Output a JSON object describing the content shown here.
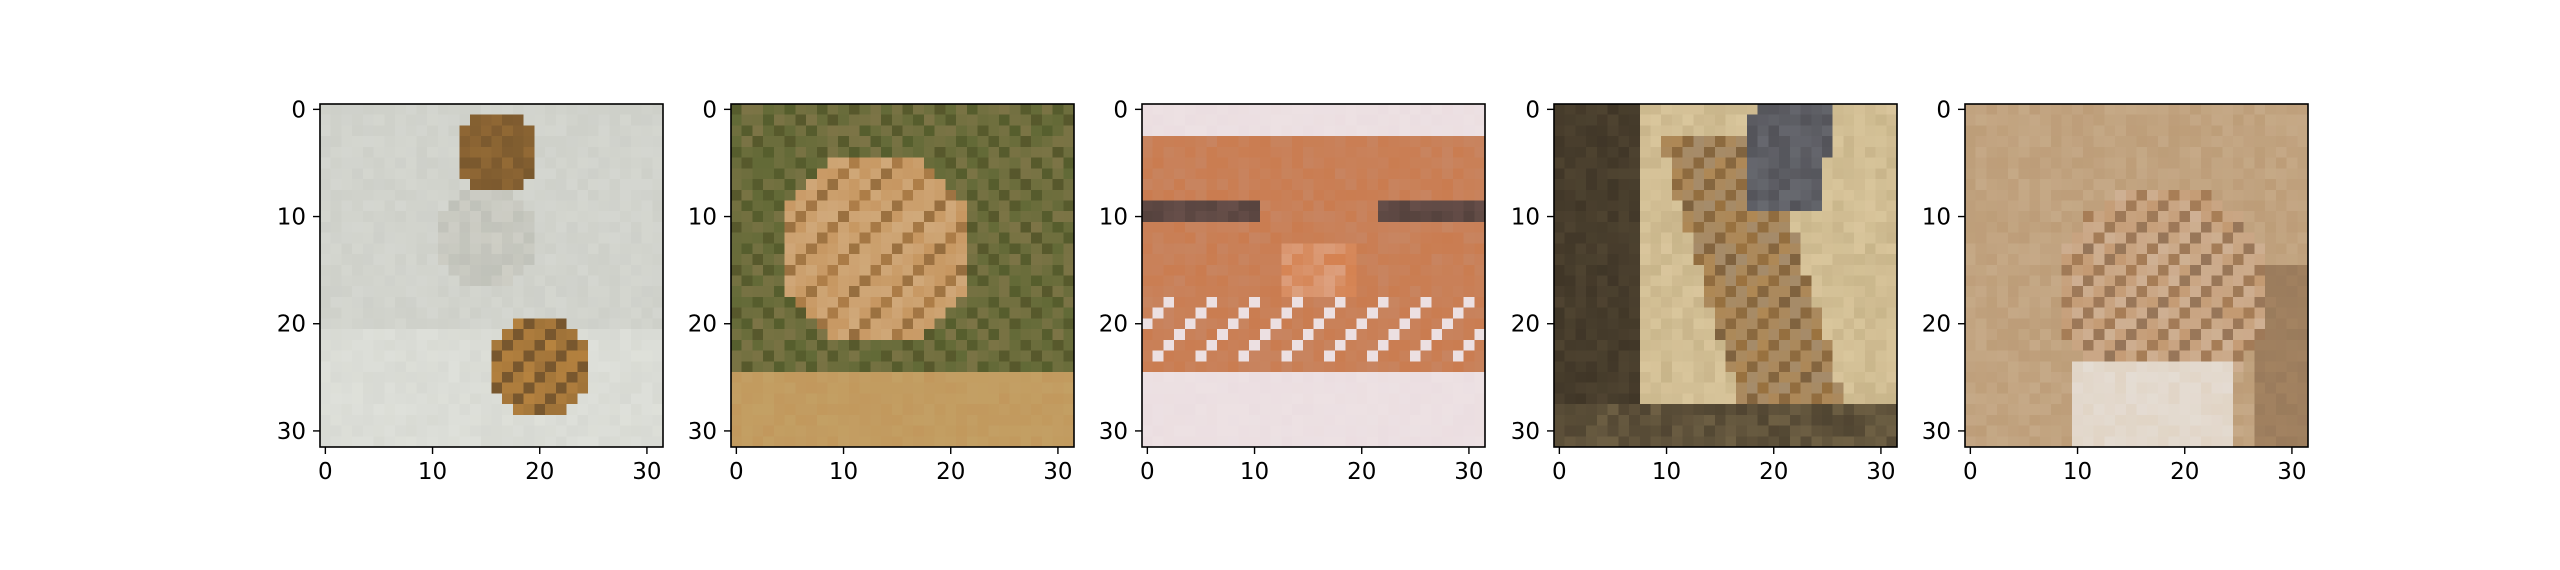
{
  "chart_data": [
    {
      "type": "image",
      "content": "pixelated tiger image",
      "xlim": [
        0,
        31
      ],
      "ylim": [
        31,
        0
      ],
      "x_ticks": [
        "0",
        "10",
        "20",
        "30"
      ],
      "y_ticks": [
        "0",
        "10",
        "20",
        "30"
      ],
      "palette": {
        "background": "#c9cbc4",
        "bg_dark": "#aeb2aa",
        "bg_light": "#e4e6e0",
        "fur": "#b5823f",
        "stripe": "#4f3a22",
        "highlight": "#ece8df"
      }
    },
    {
      "type": "image",
      "content": "pixelated tiger image",
      "xlim": [
        0,
        31
      ],
      "ylim": [
        31,
        0
      ],
      "x_ticks": [
        "0",
        "10",
        "20",
        "30"
      ],
      "y_ticks": [
        "0",
        "10",
        "20",
        "30"
      ],
      "palette": {
        "background": "#8a7a4e",
        "bg_dark": "#55642f",
        "bg_light": "#c4a86c",
        "fur": "#c08a4f",
        "stripe": "#5a4527",
        "highlight": "#e6d3b5"
      }
    },
    {
      "type": "image",
      "content": "pixelated tiger image",
      "xlim": [
        0,
        31
      ],
      "ylim": [
        31,
        0
      ],
      "x_ticks": [
        "0",
        "10",
        "20",
        "30"
      ],
      "y_ticks": [
        "0",
        "10",
        "20",
        "30"
      ],
      "palette": {
        "background": "#c58e73",
        "bg_dark": "#8d6a63",
        "bg_light": "#e9d9dc",
        "fur": "#cf6c30",
        "stripe": "#4a3a36",
        "highlight": "#efe6e8"
      }
    },
    {
      "type": "image",
      "content": "pixelated tiger image",
      "xlim": [
        0,
        31
      ],
      "ylim": [
        31,
        0
      ],
      "x_ticks": [
        "0",
        "10",
        "20",
        "30"
      ],
      "y_ticks": [
        "0",
        "10",
        "20",
        "30"
      ],
      "palette": {
        "background": "#a89468",
        "bg_dark": "#2f271d",
        "bg_light": "#ecd9b0",
        "fur": "#b8843f",
        "stripe": "#3c3a3f",
        "highlight": "#8f949c"
      }
    },
    {
      "type": "image",
      "content": "pixelated tiger image",
      "xlim": [
        0,
        31
      ],
      "ylim": [
        31,
        0
      ],
      "x_ticks": [
        "0",
        "10",
        "20",
        "30"
      ],
      "y_ticks": [
        "0",
        "10",
        "20",
        "30"
      ],
      "palette": {
        "background": "#b5926b",
        "bg_dark": "#8f7256",
        "bg_light": "#d8c3a6",
        "fur": "#b98553",
        "stripe": "#6e6460",
        "highlight": "#e7e1dc"
      }
    }
  ]
}
